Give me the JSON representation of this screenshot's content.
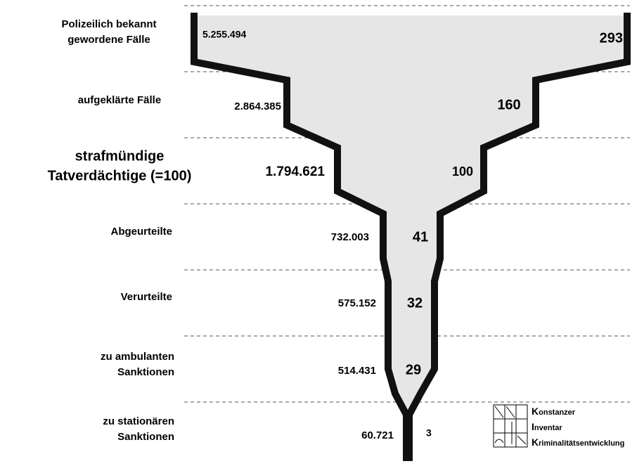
{
  "stages": [
    {
      "label": [
        "Polizeilich bekannt",
        "gewordene Fälle"
      ],
      "count": "5.255.494",
      "index": "293"
    },
    {
      "label": [
        "aufgeklärte Fälle"
      ],
      "count": "2.864.385",
      "index": "160"
    },
    {
      "label": [
        "strafmündige",
        "Tatverdächtige (=100)"
      ],
      "count": "1.794.621",
      "index": "100"
    },
    {
      "label": [
        "Abgeurteilte"
      ],
      "count": "732.003",
      "index": "41"
    },
    {
      "label": [
        "Verurteilte"
      ],
      "count": "575.152",
      "index": "32"
    },
    {
      "label": [
        "zu ambulanten",
        "Sanktionen"
      ],
      "count": "514.431",
      "index": "29"
    },
    {
      "label": [
        "zu stationären",
        "Sanktionen"
      ],
      "count": "60.721",
      "index": "3"
    }
  ],
  "logo": {
    "lines": [
      "Konstanzer",
      "Inventar",
      "Kriminalitätsentwicklung"
    ]
  }
}
